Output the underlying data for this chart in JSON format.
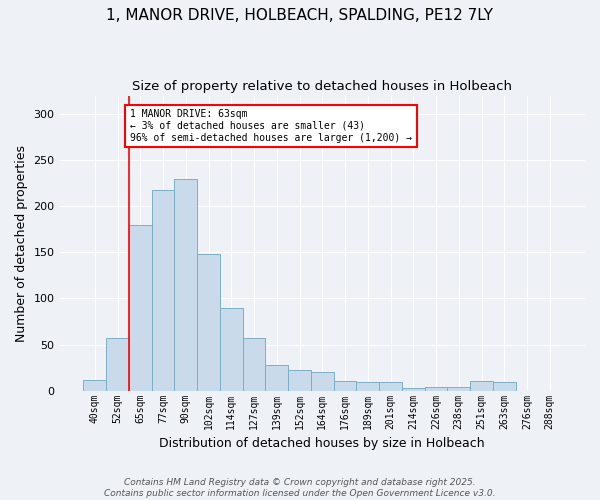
{
  "title": "1, MANOR DRIVE, HOLBEACH, SPALDING, PE12 7LY",
  "subtitle": "Size of property relative to detached houses in Holbeach",
  "xlabel": "Distribution of detached houses by size in Holbeach",
  "ylabel": "Number of detached properties",
  "categories": [
    "40sqm",
    "52sqm",
    "65sqm",
    "77sqm",
    "90sqm",
    "102sqm",
    "114sqm",
    "127sqm",
    "139sqm",
    "152sqm",
    "164sqm",
    "176sqm",
    "189sqm",
    "201sqm",
    "214sqm",
    "226sqm",
    "238sqm",
    "251sqm",
    "263sqm",
    "276sqm",
    "288sqm"
  ],
  "values": [
    11,
    57,
    180,
    218,
    230,
    148,
    90,
    57,
    28,
    22,
    20,
    10,
    9,
    9,
    3,
    4,
    4,
    10,
    9,
    0,
    0
  ],
  "bar_color": "#c9daea",
  "bar_edge_color": "#7aafc8",
  "annotation_text": "1 MANOR DRIVE: 63sqm\n← 3% of detached houses are smaller (43)\n96% of semi-detached houses are larger (1,200) →",
  "ylim": [
    0,
    320
  ],
  "yticks": [
    0,
    50,
    100,
    150,
    200,
    250,
    300
  ],
  "footer": "Contains HM Land Registry data © Crown copyright and database right 2025.\nContains public sector information licensed under the Open Government Licence v3.0.",
  "bg_color": "#eef2f7",
  "plot_bg_color": "#eef2f7",
  "grid_color": "#ffffff",
  "title_fontsize": 11,
  "subtitle_fontsize": 9.5,
  "axis_label_fontsize": 9,
  "tick_fontsize": 7,
  "footer_fontsize": 6.5,
  "red_line_x": 1.5
}
